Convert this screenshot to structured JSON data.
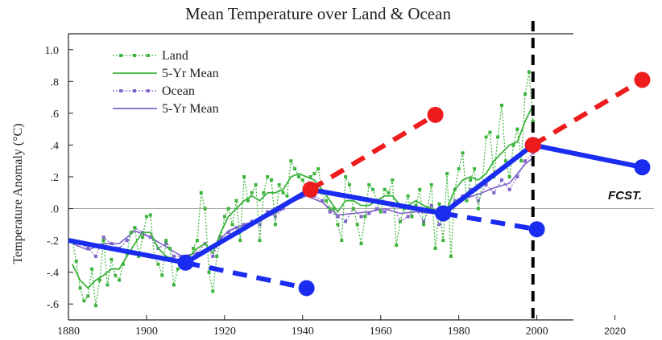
{
  "chart_data": {
    "type": "line",
    "title": "Mean Temperature over Land & Ocean",
    "xlabel": "",
    "ylabel": "Temperature Anomaly (°C)",
    "xlim": [
      1880,
      2030
    ],
    "ylim": [
      -0.7,
      1.1
    ],
    "x_ticks": [
      1880,
      1900,
      1920,
      1940,
      1960,
      1980,
      2000,
      2020
    ],
    "y_ticks": [
      {
        "value": 1.0,
        "label": "1.0"
      },
      {
        "value": 0.8,
        "label": ".8"
      },
      {
        "value": 0.6,
        "label": ".6"
      },
      {
        "value": 0.4,
        "label": ".4"
      },
      {
        "value": 0.2,
        "label": ".2"
      },
      {
        "value": 0.0,
        "label": ".0"
      },
      {
        "value": -0.2,
        "label": "-.2"
      },
      {
        "value": -0.4,
        "label": "-.4"
      },
      {
        "value": -0.6,
        "label": "-.6"
      }
    ],
    "grid": false,
    "zero_line": true,
    "legend_position": "top-left",
    "annotation": "FCST.",
    "vertical_marker_x": 1999,
    "colors": {
      "land": "#3cb43c",
      "ocean": "#7f62c8",
      "trend": "#1a2cf0",
      "forecast": "#ee1c1c",
      "marker": "#000000"
    },
    "series": [
      {
        "name": "Land",
        "style": "dotted-markers",
        "x": [
          1881,
          1882,
          1883,
          1884,
          1885,
          1886,
          1887,
          1888,
          1889,
          1890,
          1891,
          1892,
          1893,
          1894,
          1895,
          1896,
          1897,
          1898,
          1899,
          1900,
          1901,
          1902,
          1903,
          1904,
          1905,
          1906,
          1907,
          1908,
          1909,
          1910,
          1911,
          1912,
          1913,
          1914,
          1915,
          1916,
          1917,
          1918,
          1919,
          1920,
          1921,
          1922,
          1923,
          1924,
          1925,
          1926,
          1927,
          1928,
          1929,
          1930,
          1931,
          1932,
          1933,
          1934,
          1935,
          1936,
          1937,
          1938,
          1939,
          1940,
          1941,
          1942,
          1943,
          1944,
          1945,
          1946,
          1947,
          1948,
          1949,
          1950,
          1951,
          1952,
          1953,
          1954,
          1955,
          1956,
          1957,
          1958,
          1959,
          1960,
          1961,
          1962,
          1963,
          1964,
          1965,
          1966,
          1967,
          1968,
          1969,
          1970,
          1971,
          1972,
          1973,
          1974,
          1975,
          1976,
          1977,
          1978,
          1979,
          1980,
          1981,
          1982,
          1983,
          1984,
          1985,
          1986,
          1987,
          1988,
          1989,
          1990,
          1991,
          1992,
          1993,
          1994,
          1995,
          1996,
          1997,
          1998,
          1999
        ],
        "y": [
          -0.2,
          -0.33,
          -0.5,
          -0.58,
          -0.55,
          -0.38,
          -0.61,
          -0.45,
          -0.2,
          -0.48,
          -0.32,
          -0.42,
          -0.45,
          -0.35,
          -0.28,
          -0.15,
          -0.12,
          -0.3,
          -0.18,
          -0.05,
          -0.04,
          -0.3,
          -0.35,
          -0.42,
          -0.2,
          -0.25,
          -0.48,
          -0.38,
          -0.33,
          -0.32,
          -0.35,
          -0.25,
          -0.2,
          0.1,
          0.0,
          -0.4,
          -0.52,
          -0.3,
          -0.2,
          -0.05,
          0.0,
          -0.1,
          0.05,
          -0.2,
          0.2,
          0.05,
          0.1,
          0.15,
          -0.2,
          0.1,
          0.2,
          0.18,
          -0.1,
          0.15,
          0.1,
          0.08,
          0.3,
          0.25,
          0.2,
          0.18,
          0.12,
          0.2,
          0.22,
          0.25,
          0.1,
          0.05,
          0.0,
          0.0,
          -0.1,
          -0.2,
          0.2,
          0.15,
          0.0,
          -0.1,
          -0.22,
          -0.05,
          0.15,
          0.12,
          0.05,
          -0.02,
          0.12,
          0.1,
          0.18,
          -0.23,
          -0.08,
          0.0,
          0.08,
          -0.05,
          0.02,
          0.12,
          -0.1,
          0.0,
          0.15,
          -0.25,
          0.03,
          -0.2,
          0.22,
          -0.3,
          0.12,
          0.25,
          0.35,
          0.05,
          0.18,
          0.25,
          0.0,
          0.15,
          0.45,
          0.48,
          0.2,
          0.45,
          0.65,
          0.3,
          0.2,
          0.4,
          0.5,
          0.3,
          0.72,
          0.86,
          0.55
        ]
      },
      {
        "name": "5-Yr Mean",
        "style": "solid",
        "x": [
          1881,
          1883,
          1885,
          1887,
          1889,
          1891,
          1893,
          1895,
          1897,
          1899,
          1901,
          1903,
          1905,
          1907,
          1909,
          1911,
          1913,
          1915,
          1917,
          1919,
          1921,
          1923,
          1925,
          1927,
          1929,
          1931,
          1933,
          1935,
          1937,
          1939,
          1941,
          1943,
          1945,
          1947,
          1949,
          1951,
          1953,
          1955,
          1957,
          1959,
          1961,
          1963,
          1965,
          1967,
          1969,
          1971,
          1973,
          1975,
          1977,
          1979,
          1981,
          1983,
          1985,
          1987,
          1989,
          1991,
          1993,
          1995,
          1997,
          1999
        ],
        "y": [
          -0.35,
          -0.45,
          -0.5,
          -0.45,
          -0.42,
          -0.38,
          -0.38,
          -0.3,
          -0.22,
          -0.15,
          -0.15,
          -0.25,
          -0.3,
          -0.32,
          -0.33,
          -0.3,
          -0.25,
          -0.22,
          -0.28,
          -0.15,
          -0.05,
          0.0,
          0.05,
          0.08,
          0.05,
          0.1,
          0.1,
          0.12,
          0.2,
          0.22,
          0.2,
          0.18,
          0.12,
          0.05,
          -0.02,
          0.05,
          0.05,
          0.02,
          0.02,
          0.05,
          0.08,
          0.08,
          0.02,
          0.02,
          0.05,
          0.02,
          0.0,
          -0.02,
          0.0,
          0.12,
          0.18,
          0.2,
          0.18,
          0.22,
          0.3,
          0.35,
          0.4,
          0.42,
          0.55,
          0.65
        ]
      },
      {
        "name": "Ocean",
        "style": "dotted-markers",
        "x": [
          1881,
          1883,
          1885,
          1887,
          1889,
          1891,
          1893,
          1895,
          1897,
          1899,
          1901,
          1903,
          1905,
          1907,
          1909,
          1911,
          1913,
          1915,
          1917,
          1919,
          1921,
          1923,
          1925,
          1927,
          1929,
          1931,
          1933,
          1935,
          1937,
          1939,
          1941,
          1943,
          1945,
          1947,
          1949,
          1951,
          1953,
          1955,
          1957,
          1959,
          1961,
          1963,
          1965,
          1967,
          1969,
          1971,
          1973,
          1975,
          1977,
          1979,
          1981,
          1983,
          1985,
          1987,
          1989,
          1991,
          1993,
          1995,
          1997,
          1999
        ],
        "y": [
          -0.2,
          -0.22,
          -0.25,
          -0.3,
          -0.18,
          -0.22,
          -0.25,
          -0.2,
          -0.12,
          -0.15,
          -0.18,
          -0.25,
          -0.22,
          -0.3,
          -0.3,
          -0.32,
          -0.28,
          -0.22,
          -0.3,
          -0.18,
          -0.15,
          -0.12,
          -0.1,
          -0.08,
          -0.1,
          -0.02,
          -0.05,
          0.0,
          0.05,
          0.08,
          0.1,
          0.08,
          0.05,
          -0.02,
          -0.05,
          -0.08,
          0.0,
          -0.05,
          -0.03,
          0.0,
          -0.02,
          0.02,
          -0.08,
          -0.05,
          0.0,
          -0.08,
          0.02,
          -0.1,
          0.0,
          0.05,
          0.08,
          0.12,
          0.05,
          0.15,
          0.1,
          0.18,
          0.12,
          0.2,
          0.3,
          0.35
        ]
      },
      {
        "name": "5-Yr Mean",
        "style": "solid",
        "x": [
          1881,
          1885,
          1889,
          1893,
          1897,
          1901,
          1905,
          1909,
          1913,
          1917,
          1921,
          1925,
          1929,
          1933,
          1937,
          1941,
          1945,
          1949,
          1953,
          1957,
          1961,
          1965,
          1969,
          1973,
          1977,
          1981,
          1985,
          1989,
          1993,
          1997,
          1999
        ],
        "y": [
          -0.22,
          -0.26,
          -0.22,
          -0.22,
          -0.14,
          -0.18,
          -0.24,
          -0.3,
          -0.28,
          -0.24,
          -0.14,
          -0.1,
          -0.07,
          -0.03,
          0.04,
          0.08,
          0.04,
          -0.04,
          -0.03,
          -0.02,
          0.0,
          -0.03,
          -0.02,
          -0.03,
          -0.02,
          0.06,
          0.09,
          0.13,
          0.16,
          0.28,
          0.32
        ]
      },
      {
        "name": "trend",
        "style": "thick-solid-markers",
        "x": [
          1880,
          1910,
          1942,
          1976,
          1999,
          2027
        ],
        "y": [
          -0.2,
          -0.34,
          0.12,
          -0.03,
          0.4,
          0.26
        ]
      },
      {
        "name": "trend-extensions",
        "style": "thick-dashed-markers",
        "segments": [
          {
            "x": [
              1910,
              1941
            ],
            "y": [
              -0.34,
              -0.5
            ]
          },
          {
            "x": [
              1976,
              2000
            ],
            "y": [
              -0.03,
              -0.13
            ]
          }
        ]
      },
      {
        "name": "forecast",
        "style": "thick-dashed-markers",
        "segments": [
          {
            "x": [
              1942,
              1974
            ],
            "y": [
              0.12,
              0.59
            ]
          },
          {
            "x": [
              1999,
              2027
            ],
            "y": [
              0.4,
              0.81
            ]
          }
        ]
      }
    ]
  }
}
